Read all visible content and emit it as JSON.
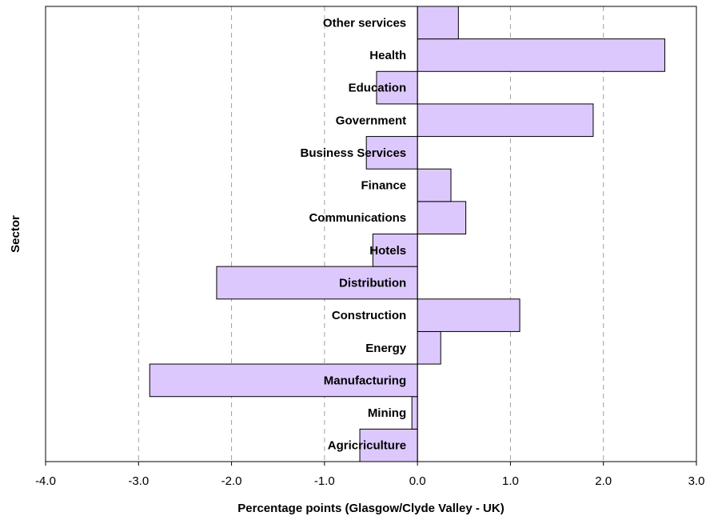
{
  "chart_data": {
    "type": "bar",
    "orientation": "horizontal",
    "categories": [
      "Agricriculture",
      "Mining",
      "Manufacturing",
      "Energy",
      "Construction",
      "Distribution",
      "Hotels",
      "Communications",
      "Finance",
      "Business Services",
      "Government",
      "Education",
      "Health",
      "Other services"
    ],
    "values": [
      -0.62,
      -0.06,
      -2.88,
      0.25,
      1.1,
      -2.16,
      -0.48,
      0.52,
      0.36,
      -0.55,
      1.89,
      -0.44,
      2.66,
      0.44
    ],
    "xlabel": "Percentage points (Glasgow/Clyde Valley - UK)",
    "ylabel": "Sector",
    "xlim": [
      -4.0,
      3.0
    ],
    "xticks": [
      "-4.0",
      "-3.0",
      "-2.0",
      "-1.0",
      "0.0",
      "1.0",
      "2.0",
      "3.0"
    ],
    "grid": "vertical dashed",
    "legend": "none",
    "colors": {
      "bar_fill": "#dcc8fc",
      "bar_stroke": "#000000",
      "grid": "#a0a0a0"
    }
  }
}
